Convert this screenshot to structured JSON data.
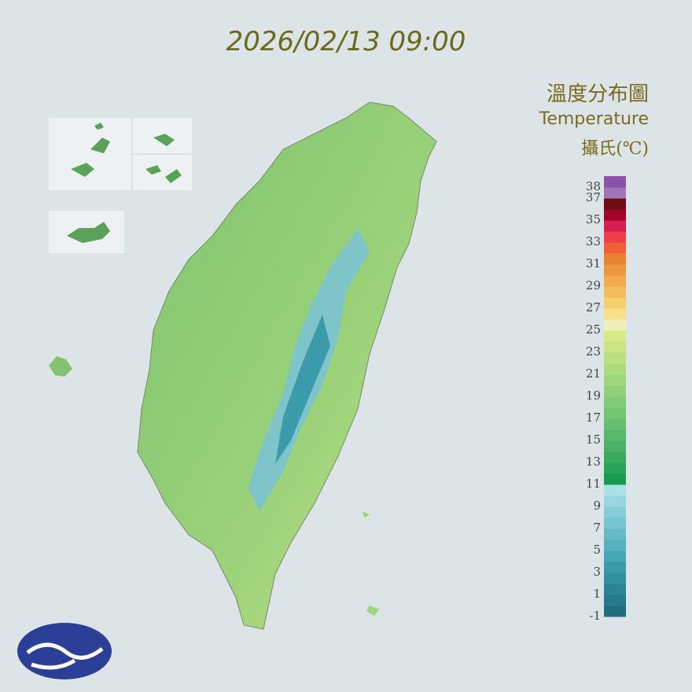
{
  "title": "2026/02/13 09:00",
  "legend": {
    "title": "溫度分布圖",
    "subtitle": "Temperature",
    "unit": "攝氏(℃)",
    "range": [
      -1,
      39
    ],
    "ticks": [
      38,
      37,
      35,
      33,
      31,
      29,
      27,
      25,
      23,
      21,
      19,
      17,
      15,
      13,
      11,
      9,
      7,
      5,
      3,
      1,
      -1
    ],
    "colors": [
      "#1f6e7e",
      "#24798a",
      "#2a8495",
      "#3290a0",
      "#3c9bab",
      "#48a6b5",
      "#56b0be",
      "#65bac7",
      "#75c4d0",
      "#86cdd8",
      "#98d6e0",
      "#abe0e8",
      "#1a9a50",
      "#2aa258",
      "#3aaa5f",
      "#4ab166",
      "#58b86c",
      "#66bf70",
      "#74c574",
      "#82cb77",
      "#90d07a",
      "#9ed67c",
      "#acdb7e",
      "#bae080",
      "#c8e584",
      "#d6ea88",
      "#eef0b8",
      "#f6e08a",
      "#f5cf70",
      "#f3bd5c",
      "#f0aa4c",
      "#ed973e",
      "#ea8330",
      "#ee5f3a",
      "#ec3f4a",
      "#d81e50",
      "#a0002a",
      "#6c0e14",
      "#a075b8",
      "#8a52a8"
    ]
  }
}
